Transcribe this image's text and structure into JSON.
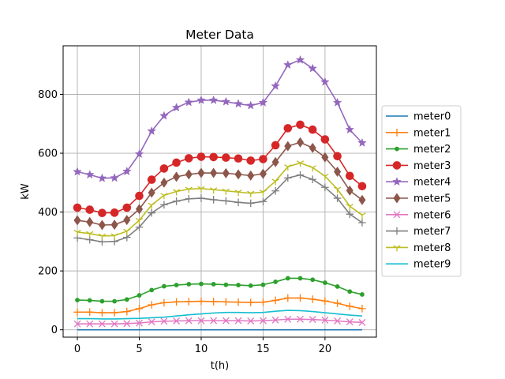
{
  "chart_data": {
    "type": "line",
    "title": "Meter Data",
    "xlabel": "t(h)",
    "ylabel": "kW",
    "x": [
      0,
      1,
      2,
      3,
      4,
      5,
      6,
      7,
      8,
      9,
      10,
      11,
      12,
      13,
      14,
      15,
      16,
      17,
      18,
      19,
      20,
      21,
      22,
      23
    ],
    "xlim": [
      -1.15,
      24.15
    ],
    "ylim": [
      -25,
      965
    ],
    "xticks": [
      0,
      5,
      10,
      15,
      20
    ],
    "yticks": [
      0,
      200,
      400,
      600,
      800
    ],
    "grid": true,
    "legend_position": "center-right",
    "series": [
      {
        "name": "meter0",
        "color": "#1f77b4",
        "marker": "none",
        "values": [
          0,
          0,
          0,
          0,
          0,
          0,
          0,
          0,
          0,
          0,
          0,
          0,
          0,
          0,
          0,
          0,
          0,
          0,
          0,
          0,
          0,
          0,
          0,
          0
        ]
      },
      {
        "name": "meter1",
        "color": "#ff7f0e",
        "marker": "plus",
        "values": [
          60,
          60,
          58,
          58,
          62,
          72,
          85,
          92,
          95,
          96,
          97,
          96,
          95,
          94,
          93,
          94,
          100,
          108,
          108,
          104,
          98,
          90,
          80,
          72
        ]
      },
      {
        "name": "meter2",
        "color": "#2ca02c",
        "marker": "point",
        "values": [
          101,
          100,
          97,
          97,
          103,
          117,
          135,
          148,
          152,
          155,
          156,
          155,
          153,
          152,
          150,
          153,
          163,
          175,
          175,
          170,
          160,
          147,
          130,
          120
        ]
      },
      {
        "name": "meter3",
        "color": "#d62728",
        "marker": "circle",
        "values": [
          415,
          408,
          397,
          398,
          415,
          455,
          510,
          548,
          568,
          583,
          588,
          587,
          585,
          582,
          575,
          580,
          627,
          685,
          697,
          680,
          647,
          590,
          523,
          488
        ]
      },
      {
        "name": "meter4",
        "color": "#9467bd",
        "marker": "star",
        "values": [
          537,
          527,
          515,
          516,
          538,
          597,
          675,
          727,
          755,
          773,
          780,
          780,
          775,
          768,
          762,
          772,
          828,
          900,
          917,
          888,
          842,
          772,
          680,
          635
        ]
      },
      {
        "name": "meter5",
        "color": "#8c564b",
        "marker": "diamond",
        "values": [
          372,
          366,
          356,
          357,
          373,
          410,
          466,
          500,
          520,
          528,
          533,
          533,
          532,
          528,
          524,
          530,
          570,
          624,
          637,
          618,
          586,
          537,
          473,
          441
        ]
      },
      {
        "name": "meter6",
        "color": "#e377c2",
        "marker": "x",
        "values": [
          20,
          20,
          20,
          20,
          21,
          23,
          27,
          29,
          30,
          31,
          31,
          31,
          31,
          31,
          30,
          31,
          33,
          36,
          36,
          35,
          33,
          30,
          27,
          25
        ]
      },
      {
        "name": "meter7",
        "color": "#7f7f7f",
        "marker": "plus",
        "values": [
          312,
          306,
          299,
          300,
          314,
          349,
          397,
          425,
          437,
          445,
          447,
          442,
          438,
          433,
          430,
          436,
          472,
          516,
          526,
          511,
          484,
          447,
          393,
          364
        ]
      },
      {
        "name": "meter8",
        "color": "#bcbd22",
        "marker": "tri_down",
        "values": [
          332,
          327,
          319,
          320,
          335,
          372,
          424,
          457,
          470,
          478,
          480,
          476,
          472,
          468,
          464,
          468,
          505,
          554,
          567,
          551,
          522,
          478,
          420,
          390
        ]
      },
      {
        "name": "meter9",
        "color": "#17becf",
        "marker": "none",
        "values": [
          38,
          38,
          37,
          37,
          38,
          39,
          41,
          43,
          47,
          51,
          54,
          57,
          59,
          59,
          58,
          59,
          63,
          66,
          65,
          62,
          58,
          54,
          50,
          47
        ]
      }
    ]
  }
}
